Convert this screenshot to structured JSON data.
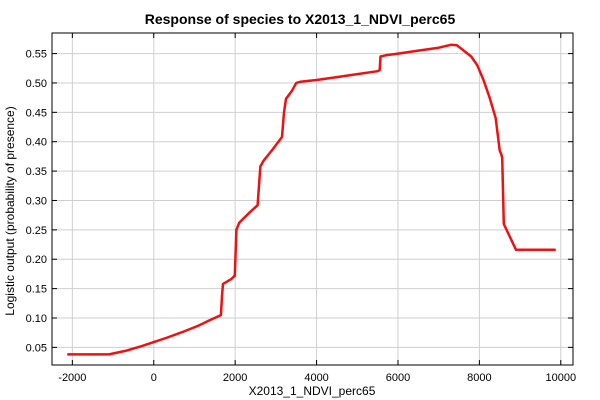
{
  "chart_data": {
    "type": "line",
    "title": "Response of species to X2013_1_NDVI_perc65",
    "xlabel": "X2013_1_NDVI_perc65",
    "ylabel": "Logistic output (probability of presence)",
    "xlim": [
      -2500,
      10300
    ],
    "ylim": [
      0.02,
      0.585
    ],
    "xticks": [
      -2000,
      0,
      2000,
      4000,
      6000,
      8000,
      10000
    ],
    "yticks": [
      0.05,
      0.1,
      0.15,
      0.2,
      0.25,
      0.3,
      0.35,
      0.4,
      0.45,
      0.5,
      0.55
    ],
    "xtick_labels": [
      "-2000",
      "0",
      "2000",
      "4000",
      "6000",
      "8000",
      "10000"
    ],
    "ytick_labels": [
      "0.05",
      "0.10",
      "0.15",
      "0.20",
      "0.25",
      "0.30",
      "0.35",
      "0.40",
      "0.45",
      "0.50",
      "0.55"
    ],
    "grid": true,
    "series": [
      {
        "color": "#ee1111",
        "x": [
          -2100,
          -1100,
          -700,
          -300,
          0,
          300,
          700,
          1100,
          1400,
          1650,
          1680,
          1700,
          1900,
          1990,
          2030,
          2100,
          2300,
          2550,
          2600,
          2620,
          2700,
          2900,
          3150,
          3200,
          3250,
          3400,
          3500,
          3600,
          4000,
          4500,
          5000,
          5500,
          5550,
          5570,
          5700,
          6000,
          6500,
          7000,
          7300,
          7450,
          7800,
          7950,
          8100,
          8250,
          8400,
          8500,
          8530,
          8560,
          8600,
          8900,
          9500,
          9850
        ],
        "y": [
          0.038,
          0.038,
          0.044,
          0.052,
          0.059,
          0.066,
          0.076,
          0.087,
          0.097,
          0.105,
          0.14,
          0.158,
          0.166,
          0.172,
          0.25,
          0.262,
          0.276,
          0.292,
          0.34,
          0.358,
          0.368,
          0.385,
          0.408,
          0.45,
          0.473,
          0.487,
          0.5,
          0.502,
          0.505,
          0.51,
          0.515,
          0.52,
          0.522,
          0.545,
          0.547,
          0.55,
          0.555,
          0.56,
          0.565,
          0.564,
          0.545,
          0.53,
          0.505,
          0.475,
          0.44,
          0.385,
          0.38,
          0.373,
          0.26,
          0.216,
          0.216,
          0.216
        ]
      }
    ]
  }
}
